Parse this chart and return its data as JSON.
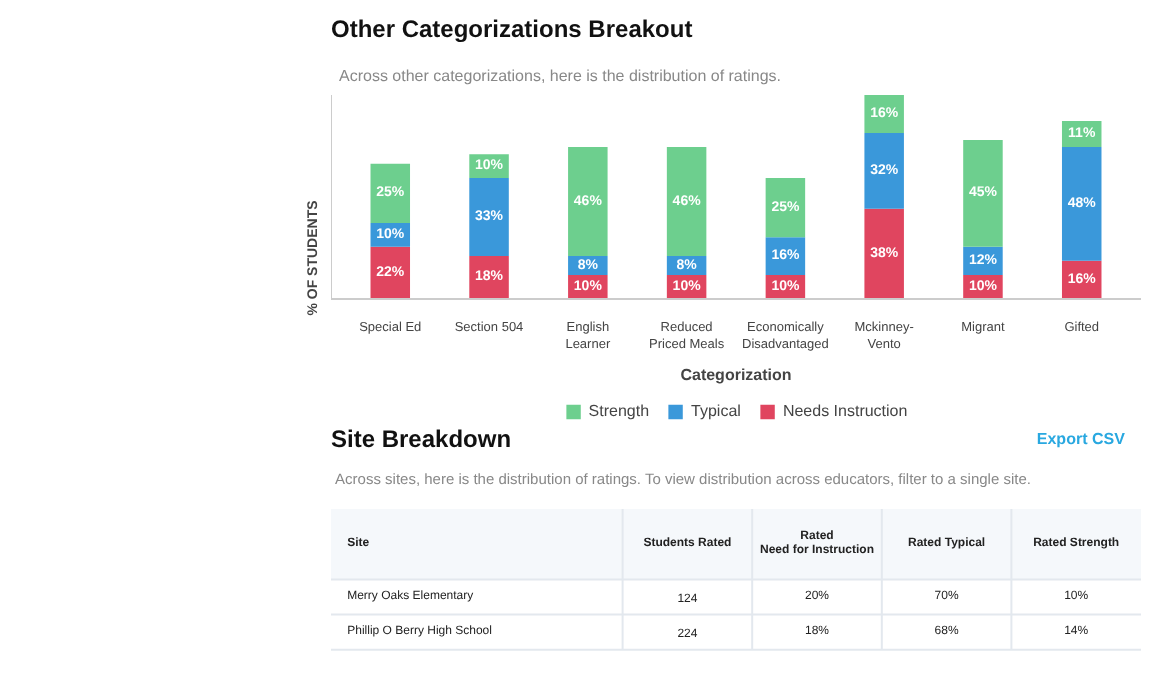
{
  "chart_data": [
    {
      "type": "bar",
      "title": "Other Categorizations Breakout",
      "subtitle": "Across other categorizations, here is the distribution of ratings.",
      "xlabel": "Categorization",
      "ylabel": "% OF STUDENTS",
      "stacked": true,
      "legend": "bottom",
      "categories": [
        "Special Ed",
        "Section 504",
        "English Learner",
        "Reduced Priced Meals",
        "Economically Disadvantaged",
        "Mckinney-Vento",
        "Migrant",
        "Gifted"
      ],
      "series": [
        {
          "name": "Needs Instruction",
          "color": "#e0455f",
          "values": [
            22,
            18,
            10,
            10,
            10,
            38,
            10,
            16
          ],
          "value_labels": [
            "22%",
            "18%",
            "10%",
            "10%",
            "10%",
            "38%",
            "10%",
            "16%"
          ]
        },
        {
          "name": "Typical",
          "color": "#3a98da",
          "values": [
            10,
            33,
            8,
            8,
            16,
            32,
            12,
            48
          ],
          "value_labels": [
            "10%",
            "33%",
            "8%",
            "8%",
            "16%",
            "32%",
            "12%",
            "48%"
          ]
        },
        {
          "name": "Strength",
          "color": "#6dcf8e",
          "values": [
            25,
            10,
            46,
            46,
            25,
            16,
            45,
            11
          ],
          "value_labels": [
            "25%",
            "10%",
            "46%",
            "46%",
            "25%",
            "16%",
            "45%",
            "11%"
          ]
        }
      ]
    },
    {
      "type": "other",
      "title": "Site Breakdown",
      "subtitle": "Across sites, here is the distribution of ratings. To view distribution across educators, filter to a single site.",
      "annotations": [
        "Export CSV",
        "Site",
        "Students Rated",
        "Rated Need for Instruction",
        "Rated Typical",
        "Rated Strength",
        "Merry Oaks Elementary",
        "124",
        "20%",
        "70%",
        "10%",
        "Phillip O Berry High School",
        "224",
        "18%",
        "68%",
        "14%"
      ]
    }
  ]
}
